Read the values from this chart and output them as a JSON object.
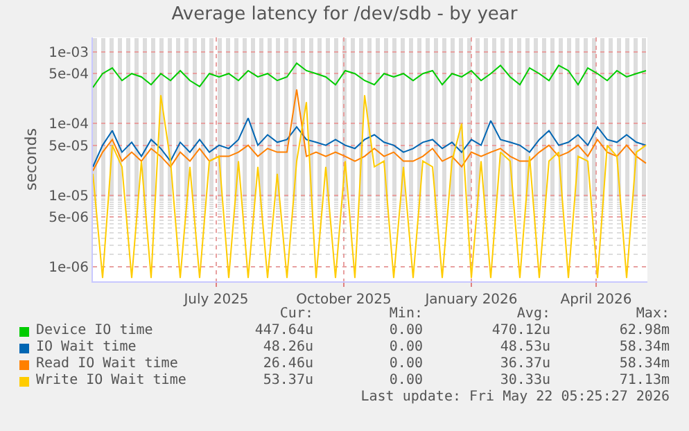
{
  "chart_data": {
    "type": "line",
    "title": "Average latency for /dev/sdb - by year",
    "ylabel": "seconds",
    "log": true,
    "grid": true,
    "legend": "bottom",
    "marker": "none",
    "line_style": "solid",
    "x": [
      "2025-04-03",
      "2025-04-10",
      "2025-04-17",
      "2025-04-24",
      "2025-05-01",
      "2025-05-08",
      "2025-05-15",
      "2025-05-22",
      "2025-05-29",
      "2025-06-05",
      "2025-06-12",
      "2025-06-19",
      "2025-06-26",
      "2025-07-03",
      "2025-07-10",
      "2025-07-17",
      "2025-07-24",
      "2025-07-31",
      "2025-08-07",
      "2025-08-14",
      "2025-08-21",
      "2025-08-28",
      "2025-09-04",
      "2025-09-11",
      "2025-09-18",
      "2025-09-25",
      "2025-10-02",
      "2025-10-09",
      "2025-10-16",
      "2025-10-23",
      "2025-10-30",
      "2025-11-06",
      "2025-11-13",
      "2025-11-20",
      "2025-11-27",
      "2025-12-04",
      "2025-12-11",
      "2025-12-18",
      "2025-12-25",
      "2026-01-01",
      "2026-01-08",
      "2026-01-15",
      "2026-01-22",
      "2026-01-29",
      "2026-02-05",
      "2026-02-12",
      "2026-02-19",
      "2026-02-26",
      "2026-03-05",
      "2026-03-12",
      "2026-03-19",
      "2026-03-26",
      "2026-04-02",
      "2026-04-09",
      "2026-04-16",
      "2026-04-23",
      "2026-04-30",
      "2026-05-07"
    ],
    "xlim": [
      "2025-04-03",
      "2026-05-08"
    ],
    "xticks": [
      {
        "value": "2025-07-01",
        "label": "July 2025"
      },
      {
        "value": "2025-10-01",
        "label": "October 2025"
      },
      {
        "value": "2026-01-01",
        "label": "January 2026"
      },
      {
        "value": "2026-04-01",
        "label": "April 2026"
      }
    ],
    "ylim": [
      6.3e-07,
      0.0016
    ],
    "yticks": [
      {
        "value": 1e-06,
        "label": "1e-06"
      },
      {
        "value": 5e-06,
        "label": "5e-06"
      },
      {
        "value": 1e-05,
        "label": "1e-05"
      },
      {
        "value": 5e-05,
        "label": "5e-05"
      },
      {
        "value": 0.0001,
        "label": "1e-04"
      },
      {
        "value": 0.0005,
        "label": "5e-04"
      },
      {
        "value": 0.001,
        "label": "1e-03"
      }
    ],
    "series": [
      {
        "name": "Device IO time",
        "color": "#00cc00",
        "values": [
          0.00032,
          0.0005,
          0.0006,
          0.0004,
          0.0005,
          0.00045,
          0.00035,
          0.0005,
          0.0004,
          0.00055,
          0.0004,
          0.00033,
          0.0005,
          0.00045,
          0.0005,
          0.0004,
          0.00055,
          0.00045,
          0.0005,
          0.0004,
          0.00045,
          0.0007,
          0.00055,
          0.0005,
          0.00045,
          0.00035,
          0.00055,
          0.0005,
          0.0004,
          0.00035,
          0.0005,
          0.00045,
          0.0005,
          0.0004,
          0.0005,
          0.00055,
          0.00035,
          0.0005,
          0.00045,
          0.00055,
          0.0004,
          0.0005,
          0.00065,
          0.00045,
          0.00035,
          0.0006,
          0.0005,
          0.0004,
          0.00065,
          0.00055,
          0.00035,
          0.0006,
          0.0005,
          0.0004,
          0.00055,
          0.00045,
          0.0005,
          0.00055
        ]
      },
      {
        "name": "IO Wait time",
        "color": "#0066b3",
        "values": [
          2.5e-05,
          5e-05,
          8e-05,
          4e-05,
          5.5e-05,
          3.5e-05,
          6e-05,
          4.5e-05,
          3e-05,
          5.5e-05,
          4e-05,
          6e-05,
          4e-05,
          5e-05,
          4.5e-05,
          6e-05,
          0.00012,
          5e-05,
          7e-05,
          5.5e-05,
          6e-05,
          9e-05,
          6e-05,
          5.5e-05,
          5e-05,
          6e-05,
          5e-05,
          4.5e-05,
          6e-05,
          7e-05,
          5.5e-05,
          5e-05,
          4e-05,
          4.5e-05,
          5.5e-05,
          6e-05,
          4.5e-05,
          5.5e-05,
          4e-05,
          6e-05,
          5e-05,
          0.00011,
          6e-05,
          5.5e-05,
          5e-05,
          4e-05,
          6e-05,
          8e-05,
          5e-05,
          5.5e-05,
          7e-05,
          5e-05,
          9e-05,
          6e-05,
          5.5e-05,
          7e-05,
          5.5e-05,
          5e-05
        ]
      },
      {
        "name": "Read IO Wait time",
        "color": "#ff8000",
        "values": [
          2.2e-05,
          4e-05,
          6e-05,
          3e-05,
          4e-05,
          3e-05,
          4.5e-05,
          3.5e-05,
          2.5e-05,
          4e-05,
          3e-05,
          4.5e-05,
          3e-05,
          3.5e-05,
          3.5e-05,
          4e-05,
          5e-05,
          3.5e-05,
          4.5e-05,
          4e-05,
          4e-05,
          0.0003,
          3.5e-05,
          4e-05,
          3.5e-05,
          4e-05,
          3.5e-05,
          3e-05,
          3.5e-05,
          4.5e-05,
          3.5e-05,
          4e-05,
          3e-05,
          3e-05,
          3.5e-05,
          4.5e-05,
          3e-05,
          3.5e-05,
          2.5e-05,
          4e-05,
          3.5e-05,
          4e-05,
          4.5e-05,
          3.5e-05,
          3e-05,
          3e-05,
          4e-05,
          5e-05,
          3.5e-05,
          4e-05,
          5e-05,
          3.5e-05,
          6e-05,
          4e-05,
          3.5e-05,
          5e-05,
          3.5e-05,
          2.8e-05
        ]
      },
      {
        "name": "Write IO Wait time",
        "color": "#ffcc00",
        "values": [
          2e-05,
          7e-07,
          5e-05,
          2.5e-05,
          7e-07,
          3e-05,
          7e-07,
          0.00025,
          3e-05,
          7e-07,
          2.5e-05,
          7e-07,
          3e-05,
          3.5e-05,
          7e-07,
          3e-05,
          7e-07,
          2.5e-05,
          7e-07,
          2e-05,
          7e-07,
          3e-05,
          0.0002,
          7e-07,
          2.5e-05,
          7e-07,
          3e-05,
          7e-07,
          0.00025,
          2.5e-05,
          3e-05,
          7e-07,
          2.5e-05,
          7e-07,
          3e-05,
          2.5e-05,
          7e-07,
          3e-05,
          0.0001,
          7e-07,
          3e-05,
          7e-07,
          4e-05,
          3e-05,
          7e-07,
          3.5e-05,
          7e-07,
          3e-05,
          4e-05,
          7e-07,
          3.5e-05,
          3e-05,
          7e-07,
          5e-05,
          3.5e-05,
          7e-07,
          4e-05,
          5e-05
        ]
      }
    ],
    "annotations": [
      "Cur:",
      "Min:",
      "Avg:",
      "Max:",
      "447.64u",
      "0.00",
      "470.12u",
      "62.98m",
      "48.26u",
      "0.00",
      "48.53u",
      "58.34m",
      "26.46u",
      "0.00",
      "36.37u",
      "58.34m",
      "53.37u",
      "0.00",
      "30.33u",
      "71.13m",
      "Last update: Fri May 22 05:25:27 2026"
    ]
  }
}
